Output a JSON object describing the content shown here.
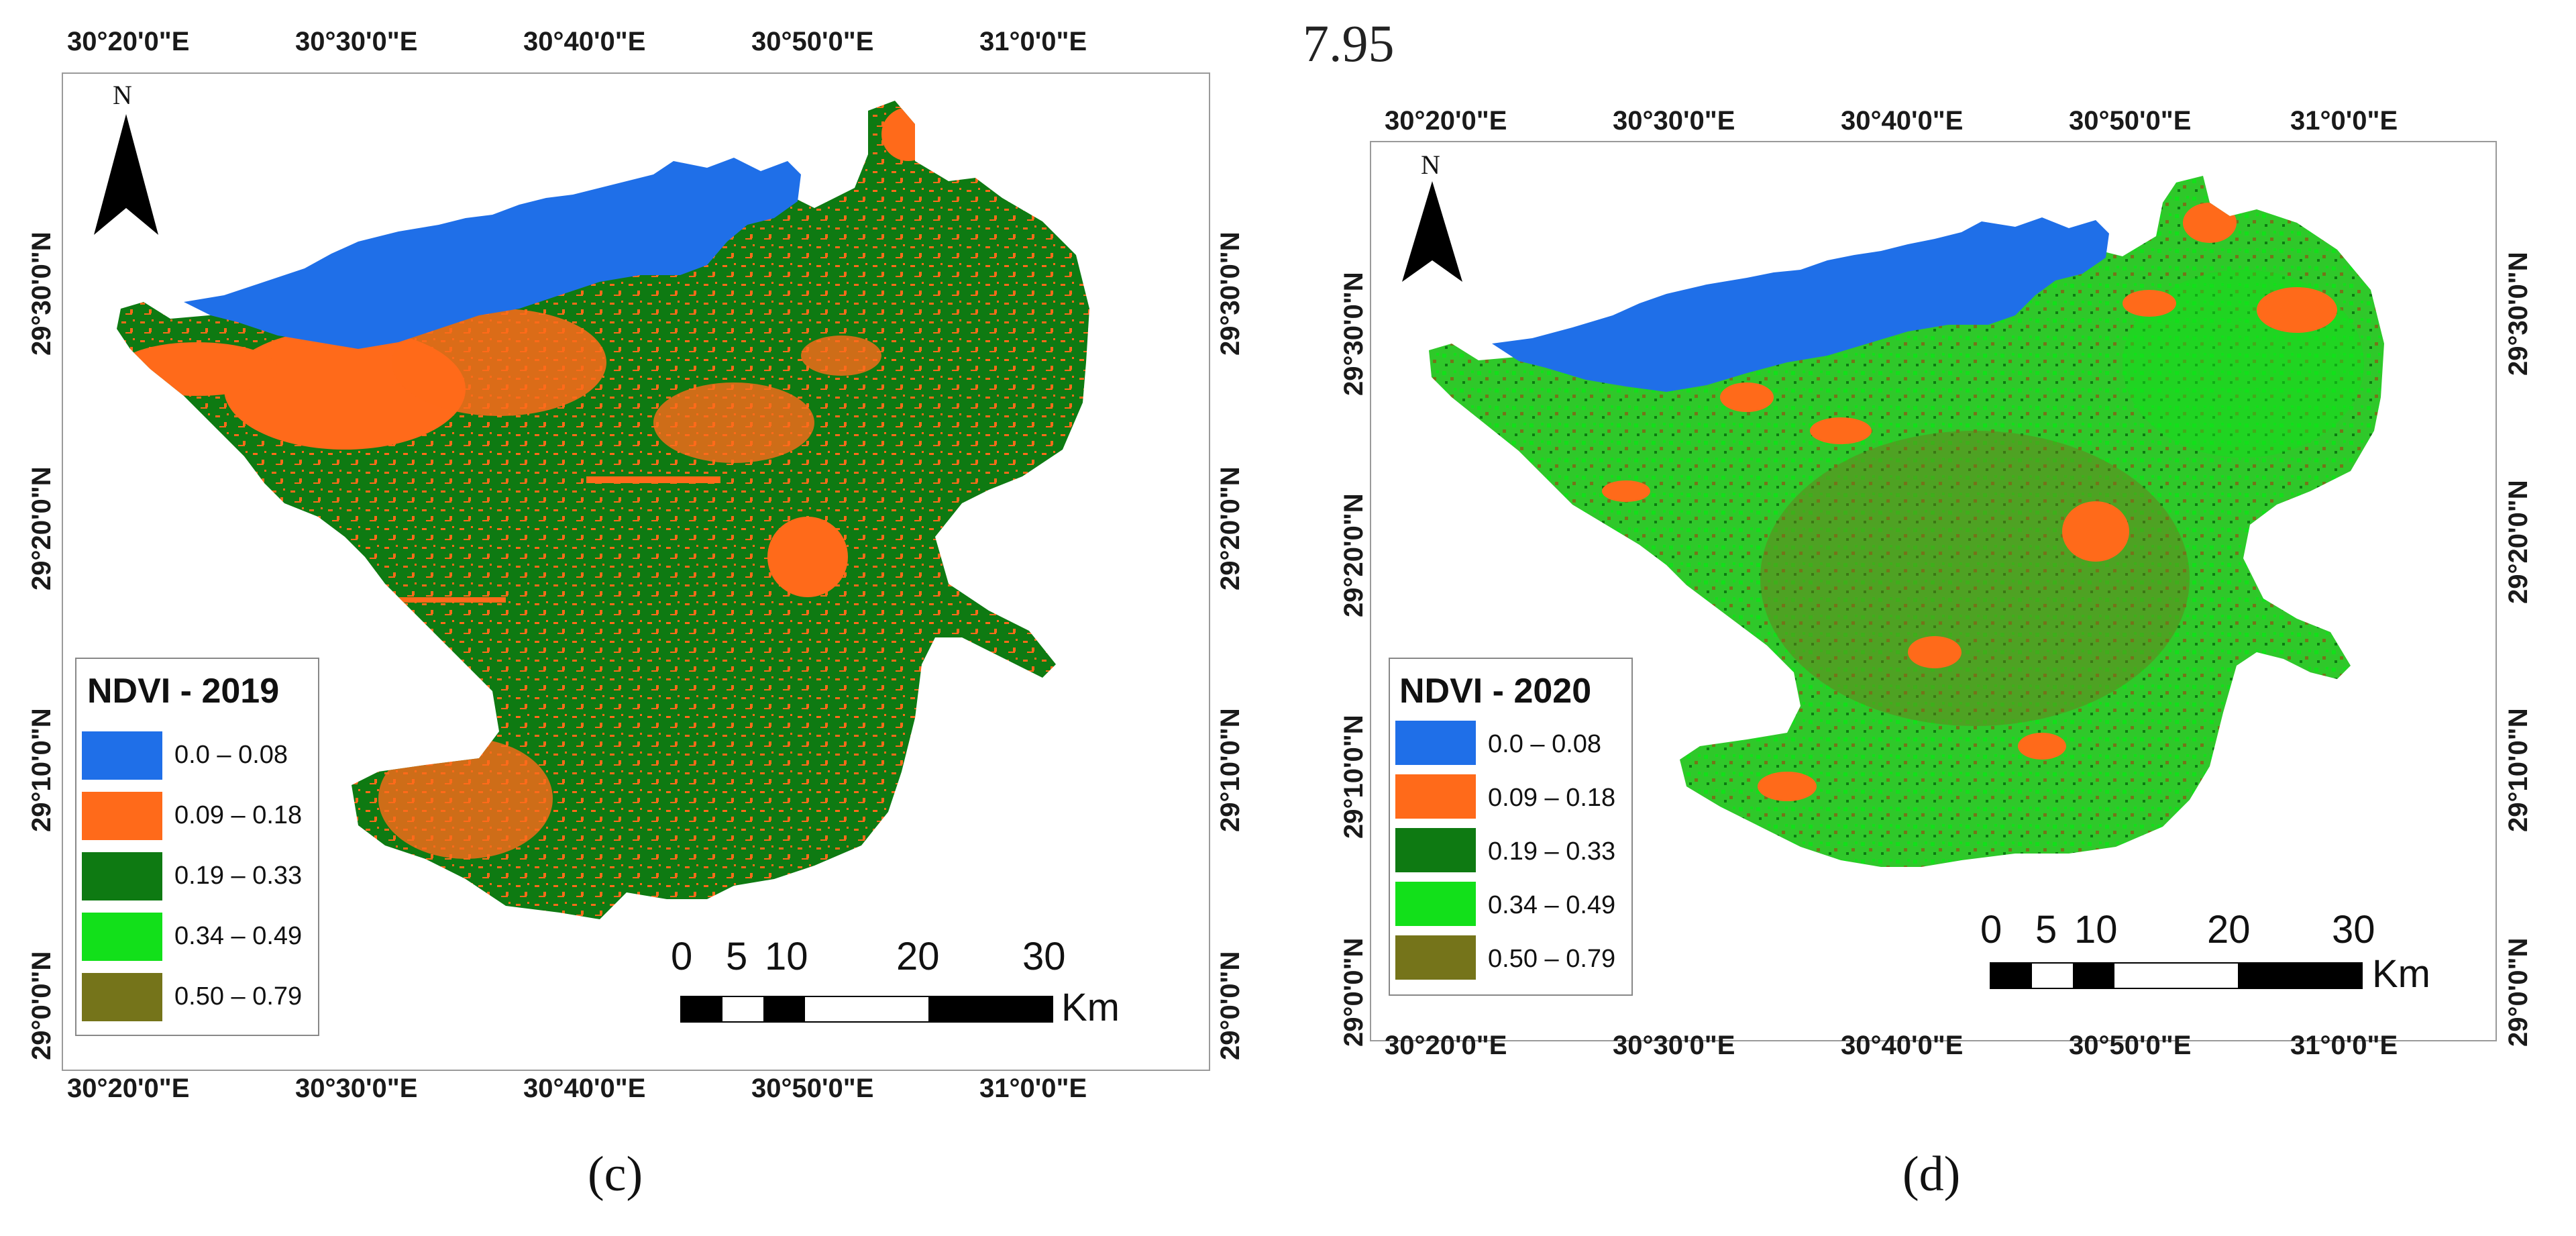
{
  "stray_text": "7.95",
  "colors": {
    "water": "#1f6fe8",
    "bare": "#ff6a1a",
    "dark_green": "#0e7a12",
    "bright_green": "#12e01a",
    "olive": "#75741a"
  },
  "legend_entries": [
    {
      "range": "0.0 – 0.08",
      "color": "#1f6fe8"
    },
    {
      "range": "0.09 – 0.18",
      "color": "#ff6a1a"
    },
    {
      "range": "0.19 – 0.33",
      "color": "#0e7a12"
    },
    {
      "range": "0.34 – 0.49",
      "color": "#12e01a"
    },
    {
      "range": "0.50 – 0.79",
      "color": "#75741a"
    }
  ],
  "map_c": {
    "caption": "(c)",
    "legend_title": "NDVI - 2019",
    "lon_ticks": [
      "30°20'0\"E",
      "30°30'0\"E",
      "30°40'0\"E",
      "30°50'0\"E",
      "31°0'0\"E"
    ],
    "lat_ticks": [
      "29°30'0\"N",
      "29°20'0\"N",
      "29°10'0\"N",
      "29°0'0\"N"
    ],
    "north_label": "N",
    "scale_numbers": [
      "0",
      "5",
      "10",
      "20",
      "30"
    ],
    "scale_unit": "Km"
  },
  "map_d": {
    "caption": "(d)",
    "legend_title": "NDVI - 2020",
    "lon_ticks": [
      "30°20'0\"E",
      "30°30'0\"E",
      "30°40'0\"E",
      "30°50'0\"E",
      "31°0'0\"E"
    ],
    "lat_ticks": [
      "29°30'0\"N",
      "29°20'0\"N",
      "29°10'0\"N",
      "29°0'0\"N"
    ],
    "north_label": "N",
    "scale_numbers": [
      "0",
      "5",
      "10",
      "20",
      "30"
    ],
    "scale_unit": "Km"
  }
}
